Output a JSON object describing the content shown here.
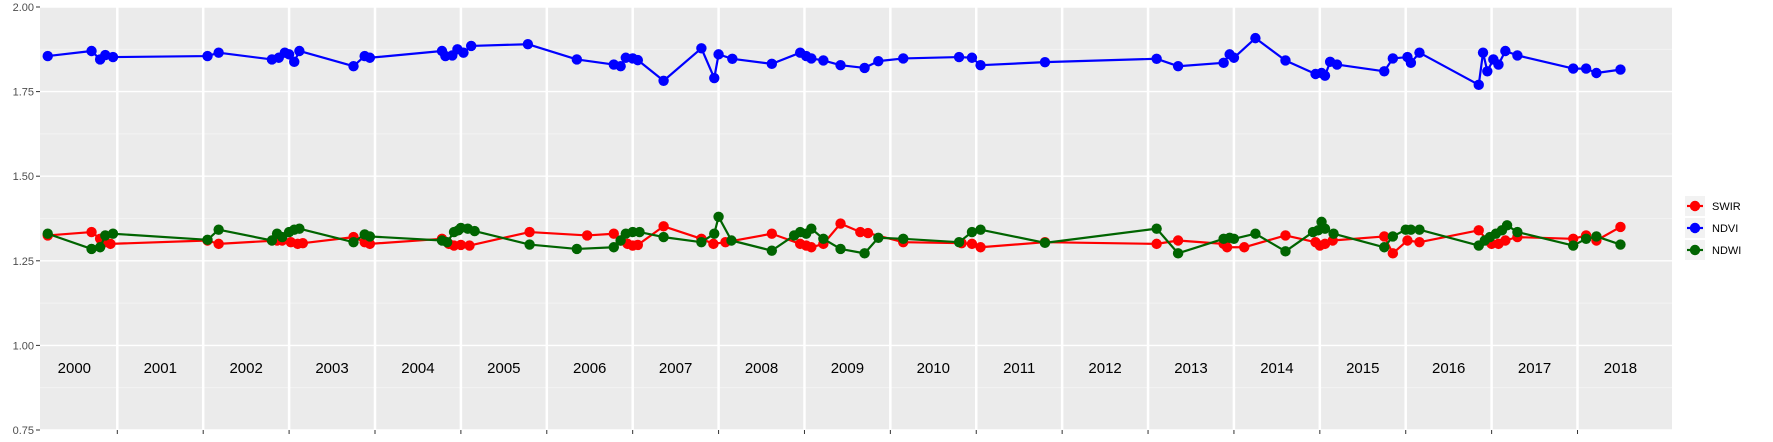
{
  "chart_data": {
    "type": "line",
    "title": "",
    "xlabel": "",
    "ylabel": "",
    "ylim": [
      0.75,
      2.0
    ],
    "yticks": [
      "0.75",
      "1.00",
      "1.25",
      "1.50",
      "1.75",
      "2.00"
    ],
    "xlim": [
      1999.6,
      2018.6
    ],
    "year_labels": [
      "2000",
      "2001",
      "2002",
      "2003",
      "2004",
      "2005",
      "2006",
      "2007",
      "2008",
      "2009",
      "2010",
      "2011",
      "2012",
      "2013",
      "2014",
      "2015",
      "2016",
      "2017",
      "2018"
    ],
    "grid": true,
    "legend_position": "right",
    "series": [
      {
        "name": "SWIR",
        "color": "#ff0000",
        "points": [
          [
            1999.69,
            1.325
          ],
          [
            2000.2,
            1.335
          ],
          [
            2000.3,
            1.315
          ],
          [
            2000.36,
            1.305
          ],
          [
            2000.42,
            1.3
          ],
          [
            2001.55,
            1.31
          ],
          [
            2001.68,
            1.3
          ],
          [
            2002.36,
            1.31
          ],
          [
            2002.42,
            1.31
          ],
          [
            2002.52,
            1.305
          ],
          [
            2002.6,
            1.3
          ],
          [
            2002.66,
            1.302
          ],
          [
            2003.25,
            1.32
          ],
          [
            2003.38,
            1.305
          ],
          [
            2003.44,
            1.3
          ],
          [
            2004.28,
            1.315
          ],
          [
            2004.36,
            1.3
          ],
          [
            2004.42,
            1.295
          ],
          [
            2004.5,
            1.297
          ],
          [
            2004.6,
            1.295
          ],
          [
            2005.3,
            1.335
          ],
          [
            2005.97,
            1.325
          ],
          [
            2006.28,
            1.33
          ],
          [
            2006.36,
            1.31
          ],
          [
            2006.44,
            1.3
          ],
          [
            2006.5,
            1.295
          ],
          [
            2006.56,
            1.297
          ],
          [
            2006.86,
            1.352
          ],
          [
            2007.3,
            1.315
          ],
          [
            2007.44,
            1.3
          ],
          [
            2007.58,
            1.305
          ],
          [
            2008.12,
            1.33
          ],
          [
            2008.45,
            1.3
          ],
          [
            2008.52,
            1.295
          ],
          [
            2008.58,
            1.29
          ],
          [
            2008.72,
            1.3
          ],
          [
            2008.92,
            1.36
          ],
          [
            2009.15,
            1.335
          ],
          [
            2009.24,
            1.332
          ],
          [
            2009.65,
            1.305
          ],
          [
            2010.33,
            1.302
          ],
          [
            2010.45,
            1.3
          ],
          [
            2010.55,
            1.29
          ],
          [
            2011.3,
            1.305
          ],
          [
            2012.6,
            1.3
          ],
          [
            2012.85,
            1.31
          ],
          [
            2013.38,
            1.3
          ],
          [
            2013.42,
            1.29
          ],
          [
            2013.62,
            1.29
          ],
          [
            2014.1,
            1.325
          ],
          [
            2014.45,
            1.305
          ],
          [
            2014.5,
            1.295
          ],
          [
            2014.56,
            1.3
          ],
          [
            2014.65,
            1.31
          ],
          [
            2015.25,
            1.322
          ],
          [
            2015.35,
            1.272
          ],
          [
            2015.52,
            1.31
          ],
          [
            2015.66,
            1.305
          ],
          [
            2016.35,
            1.34
          ],
          [
            2016.45,
            1.31
          ],
          [
            2016.5,
            1.3
          ],
          [
            2016.58,
            1.3
          ],
          [
            2016.66,
            1.31
          ],
          [
            2016.8,
            1.32
          ],
          [
            2017.45,
            1.315
          ],
          [
            2017.6,
            1.325
          ],
          [
            2017.72,
            1.31
          ],
          [
            2018.0,
            1.35
          ]
        ]
      },
      {
        "name": "NDVI",
        "color": "#0000ff",
        "points": [
          [
            1999.69,
            1.855
          ],
          [
            2000.2,
            1.87
          ],
          [
            2000.3,
            1.845
          ],
          [
            2000.36,
            1.858
          ],
          [
            2000.45,
            1.852
          ],
          [
            2001.55,
            1.855
          ],
          [
            2001.68,
            1.865
          ],
          [
            2002.3,
            1.845
          ],
          [
            2002.38,
            1.85
          ],
          [
            2002.45,
            1.865
          ],
          [
            2002.5,
            1.86
          ],
          [
            2002.56,
            1.838
          ],
          [
            2002.62,
            1.87
          ],
          [
            2003.25,
            1.825
          ],
          [
            2003.38,
            1.855
          ],
          [
            2003.44,
            1.85
          ],
          [
            2004.28,
            1.87
          ],
          [
            2004.32,
            1.855
          ],
          [
            2004.4,
            1.857
          ],
          [
            2004.46,
            1.875
          ],
          [
            2004.53,
            1.865
          ],
          [
            2004.62,
            1.885
          ],
          [
            2005.28,
            1.89
          ],
          [
            2005.85,
            1.845
          ],
          [
            2006.28,
            1.83
          ],
          [
            2006.36,
            1.825
          ],
          [
            2006.42,
            1.85
          ],
          [
            2006.5,
            1.848
          ],
          [
            2006.56,
            1.843
          ],
          [
            2006.86,
            1.782
          ],
          [
            2007.3,
            1.878
          ],
          [
            2007.45,
            1.79
          ],
          [
            2007.5,
            1.86
          ],
          [
            2007.66,
            1.847
          ],
          [
            2008.12,
            1.832
          ],
          [
            2008.45,
            1.865
          ],
          [
            2008.52,
            1.855
          ],
          [
            2008.58,
            1.848
          ],
          [
            2008.72,
            1.842
          ],
          [
            2008.92,
            1.828
          ],
          [
            2009.2,
            1.82
          ],
          [
            2009.36,
            1.84
          ],
          [
            2009.65,
            1.848
          ],
          [
            2010.3,
            1.852
          ],
          [
            2010.45,
            1.85
          ],
          [
            2010.55,
            1.828
          ],
          [
            2011.3,
            1.837
          ],
          [
            2012.6,
            1.847
          ],
          [
            2012.85,
            1.825
          ],
          [
            2013.38,
            1.835
          ],
          [
            2013.45,
            1.86
          ],
          [
            2013.5,
            1.85
          ],
          [
            2013.75,
            1.908
          ],
          [
            2014.1,
            1.842
          ],
          [
            2014.45,
            1.802
          ],
          [
            2014.52,
            1.805
          ],
          [
            2014.56,
            1.797
          ],
          [
            2014.62,
            1.838
          ],
          [
            2014.7,
            1.83
          ],
          [
            2015.25,
            1.81
          ],
          [
            2015.35,
            1.848
          ],
          [
            2015.52,
            1.852
          ],
          [
            2015.56,
            1.835
          ],
          [
            2015.66,
            1.865
          ],
          [
            2016.35,
            1.77
          ],
          [
            2016.4,
            1.865
          ],
          [
            2016.45,
            1.81
          ],
          [
            2016.52,
            1.845
          ],
          [
            2016.58,
            1.83
          ],
          [
            2016.66,
            1.87
          ],
          [
            2016.8,
            1.857
          ],
          [
            2017.45,
            1.818
          ],
          [
            2017.6,
            1.818
          ],
          [
            2017.72,
            1.805
          ],
          [
            2018.0,
            1.815
          ]
        ]
      },
      {
        "name": "NDWI",
        "color": "#006400",
        "points": [
          [
            1999.69,
            1.33
          ],
          [
            2000.2,
            1.285
          ],
          [
            2000.3,
            1.29
          ],
          [
            2000.36,
            1.325
          ],
          [
            2000.45,
            1.33
          ],
          [
            2001.55,
            1.312
          ],
          [
            2001.68,
            1.342
          ],
          [
            2002.3,
            1.31
          ],
          [
            2002.36,
            1.33
          ],
          [
            2002.42,
            1.32
          ],
          [
            2002.5,
            1.335
          ],
          [
            2002.56,
            1.342
          ],
          [
            2002.62,
            1.345
          ],
          [
            2003.25,
            1.305
          ],
          [
            2003.38,
            1.328
          ],
          [
            2003.44,
            1.322
          ],
          [
            2004.28,
            1.31
          ],
          [
            2004.34,
            1.305
          ],
          [
            2004.42,
            1.335
          ],
          [
            2004.47,
            1.34
          ],
          [
            2004.5,
            1.347
          ],
          [
            2004.58,
            1.345
          ],
          [
            2004.66,
            1.338
          ],
          [
            2005.3,
            1.298
          ],
          [
            2005.85,
            1.285
          ],
          [
            2006.28,
            1.29
          ],
          [
            2006.36,
            1.31
          ],
          [
            2006.42,
            1.33
          ],
          [
            2006.5,
            1.335
          ],
          [
            2006.58,
            1.335
          ],
          [
            2006.86,
            1.32
          ],
          [
            2007.3,
            1.305
          ],
          [
            2007.45,
            1.33
          ],
          [
            2007.5,
            1.38
          ],
          [
            2007.65,
            1.31
          ],
          [
            2008.12,
            1.28
          ],
          [
            2008.38,
            1.325
          ],
          [
            2008.45,
            1.335
          ],
          [
            2008.52,
            1.33
          ],
          [
            2008.58,
            1.345
          ],
          [
            2008.72,
            1.315
          ],
          [
            2008.92,
            1.285
          ],
          [
            2009.2,
            1.272
          ],
          [
            2009.36,
            1.318
          ],
          [
            2009.65,
            1.315
          ],
          [
            2010.3,
            1.305
          ],
          [
            2010.45,
            1.335
          ],
          [
            2010.55,
            1.342
          ],
          [
            2011.3,
            1.303
          ],
          [
            2012.6,
            1.345
          ],
          [
            2012.85,
            1.272
          ],
          [
            2013.38,
            1.315
          ],
          [
            2013.45,
            1.318
          ],
          [
            2013.5,
            1.315
          ],
          [
            2013.75,
            1.33
          ],
          [
            2014.1,
            1.278
          ],
          [
            2014.42,
            1.335
          ],
          [
            2014.48,
            1.34
          ],
          [
            2014.52,
            1.365
          ],
          [
            2014.56,
            1.345
          ],
          [
            2014.66,
            1.33
          ],
          [
            2015.25,
            1.29
          ],
          [
            2015.35,
            1.322
          ],
          [
            2015.5,
            1.342
          ],
          [
            2015.56,
            1.342
          ],
          [
            2015.66,
            1.342
          ],
          [
            2016.35,
            1.295
          ],
          [
            2016.42,
            1.31
          ],
          [
            2016.48,
            1.32
          ],
          [
            2016.55,
            1.33
          ],
          [
            2016.62,
            1.34
          ],
          [
            2016.68,
            1.355
          ],
          [
            2016.8,
            1.335
          ],
          [
            2017.45,
            1.295
          ],
          [
            2017.6,
            1.315
          ],
          [
            2017.72,
            1.322
          ],
          [
            2018.0,
            1.298
          ]
        ]
      }
    ]
  }
}
